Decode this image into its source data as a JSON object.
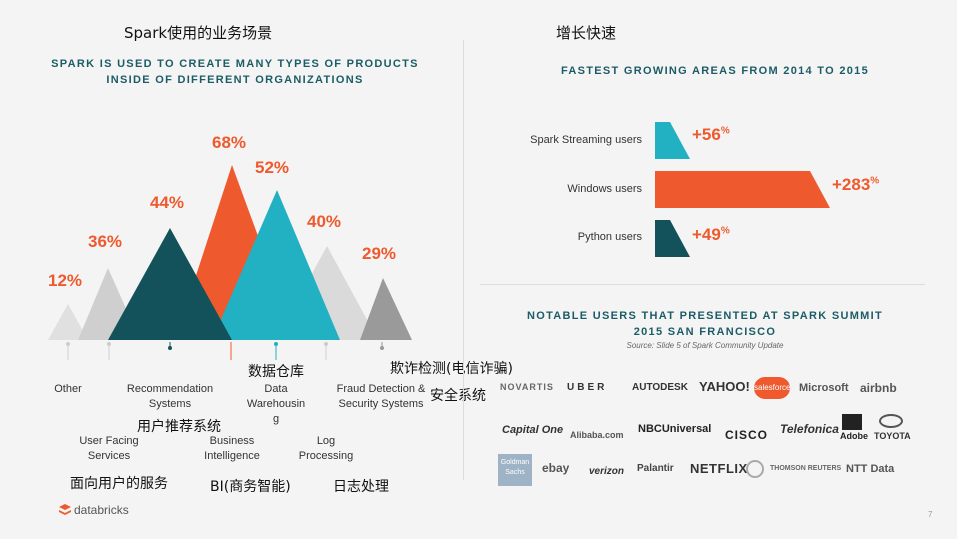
{
  "left": {
    "zh_title": "Spark使用的业务场景",
    "header": [
      "SPARK IS USED TO CREATE MANY TYPES OF PRODUCTS",
      "INSIDE OF DIFFERENT ORGANIZATIONS"
    ],
    "peaks": [
      {
        "label": "Other",
        "pct": "12%",
        "color": "#dedede"
      },
      {
        "label": "User Facing Services",
        "pct": "36%",
        "color": "#cfcfcf"
      },
      {
        "label": "Recommendation Systems",
        "pct": "44%",
        "color": "#13525a"
      },
      {
        "label": "Business Intelligence",
        "pct": "68%",
        "color": "#ee5a2d"
      },
      {
        "label": "Data Warehousing",
        "pct": "52%",
        "color": "#22b0c3"
      },
      {
        "label": "Log Processing",
        "pct": "40%",
        "color": "#d7d7d7"
      },
      {
        "label": "Fraud Detection & Security Systems",
        "pct": "29%",
        "color": "#999999"
      }
    ],
    "cat_lines": {
      "other": "Other",
      "ufs1": "User Facing",
      "ufs2": "Services",
      "rec1": "Recommendation",
      "rec2": "Systems",
      "bi1": "Business",
      "bi2": "Intelligence",
      "dw1": "Data",
      "dw2": "Warehousin",
      "dw3": "g",
      "log1": "Log",
      "log2": "Processing",
      "fraud1": "Fraud Detection &",
      "fraud2": "Security Systems"
    },
    "zh_labels": {
      "dw": "数据仓库",
      "fraud": "欺诈检测(电信诈骗)",
      "security": "安全系统",
      "rec": "用户推荐系统",
      "ufs": "面向用户的服务",
      "bi": "BI(商务智能)",
      "log": "日志处理"
    }
  },
  "right": {
    "zh_title": "增长快速",
    "header": "FASTEST GROWING AREAS FROM 2014 TO 2015",
    "bars": [
      {
        "label": "Spark Streaming users",
        "gain": "+56",
        "unit": "%",
        "value": 56,
        "color": "#22b0c3"
      },
      {
        "label": "Windows users",
        "gain": "+283",
        "unit": "%",
        "value": 283,
        "color": "#ee5a2d"
      },
      {
        "label": "Python users",
        "gain": "+49",
        "unit": "%",
        "value": 49,
        "color": "#13525a"
      }
    ],
    "users_header": [
      "NOTABLE USERS THAT PRESENTED AT SPARK SUMMIT",
      "2015 SAN FRANCISCO"
    ],
    "source": "Source: Slide 5 of Spark Community Update",
    "logos_row1": [
      "NOVARTIS",
      "UBER",
      "AUTODESK",
      "YAHOO!",
      "salesforce",
      "Microsoft",
      "airbnb"
    ],
    "logos_row2": [
      "Capital One",
      "Alibaba.com",
      "NBCUniversal",
      "CISCO",
      "Telefonica",
      "Adobe",
      "TOYOTA"
    ],
    "logos_row3": [
      "Goldman Sachs",
      "ebay",
      "verizon",
      "Palantir",
      "NETFLIX",
      "THOMSON REUTERS",
      "NTT Data"
    ]
  },
  "footer": {
    "brand": "databricks",
    "page": "7"
  }
}
